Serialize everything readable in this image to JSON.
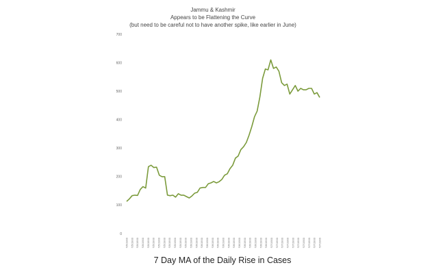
{
  "caption": "7 Day MA of the Daily Rise in Cases",
  "chart_data": {
    "type": "line",
    "title_lines": [
      "Jammu & Kashmir",
      "Appears to be Flattening the Curve",
      "(but need to be careful not to have another spike, like earlier in June)"
    ],
    "xlabel": "",
    "ylabel": "",
    "ylim": [
      0,
      700
    ],
    "yticks": [
      0,
      100,
      200,
      300,
      400,
      500,
      600,
      700
    ],
    "grid": false,
    "legend": "none",
    "line_color": "#7a9a3a",
    "x_tick_labels": [
      "09/05/1900",
      "11/05/1900",
      "13/05/1900",
      "15/05/1900",
      "17/05/1900",
      "19/05/1900",
      "21/05/1900",
      "23/05/1900",
      "25/05/1900",
      "27/05/1900",
      "29/05/1900",
      "31/05/1900",
      "02/06/1900",
      "04/06/1900",
      "06/06/1900",
      "08/06/1900",
      "10/06/1900",
      "12/06/1900",
      "14/06/1900",
      "16/06/1900",
      "18/06/1900",
      "20/06/1900",
      "22/06/1900",
      "24/06/1900",
      "26/06/1900",
      "28/06/1900",
      "30/06/1900",
      "02/07/1900",
      "04/07/1900",
      "06/07/1900",
      "08/07/1900",
      "10/07/1900",
      "12/07/1900",
      "14/07/1900",
      "16/07/1900",
      "18/07/1900",
      "20/07/1900"
    ],
    "values": [
      113,
      122,
      133,
      135,
      134,
      155,
      165,
      160,
      235,
      240,
      232,
      233,
      205,
      200,
      200,
      135,
      133,
      135,
      128,
      140,
      135,
      135,
      130,
      125,
      132,
      142,
      145,
      160,
      162,
      162,
      175,
      178,
      183,
      178,
      182,
      190,
      205,
      210,
      228,
      240,
      265,
      272,
      295,
      305,
      320,
      345,
      375,
      410,
      430,
      480,
      545,
      578,
      575,
      610,
      580,
      585,
      570,
      530,
      520,
      525,
      490,
      505,
      520,
      500,
      510,
      505,
      505,
      510,
      510,
      490,
      495,
      478
    ]
  }
}
